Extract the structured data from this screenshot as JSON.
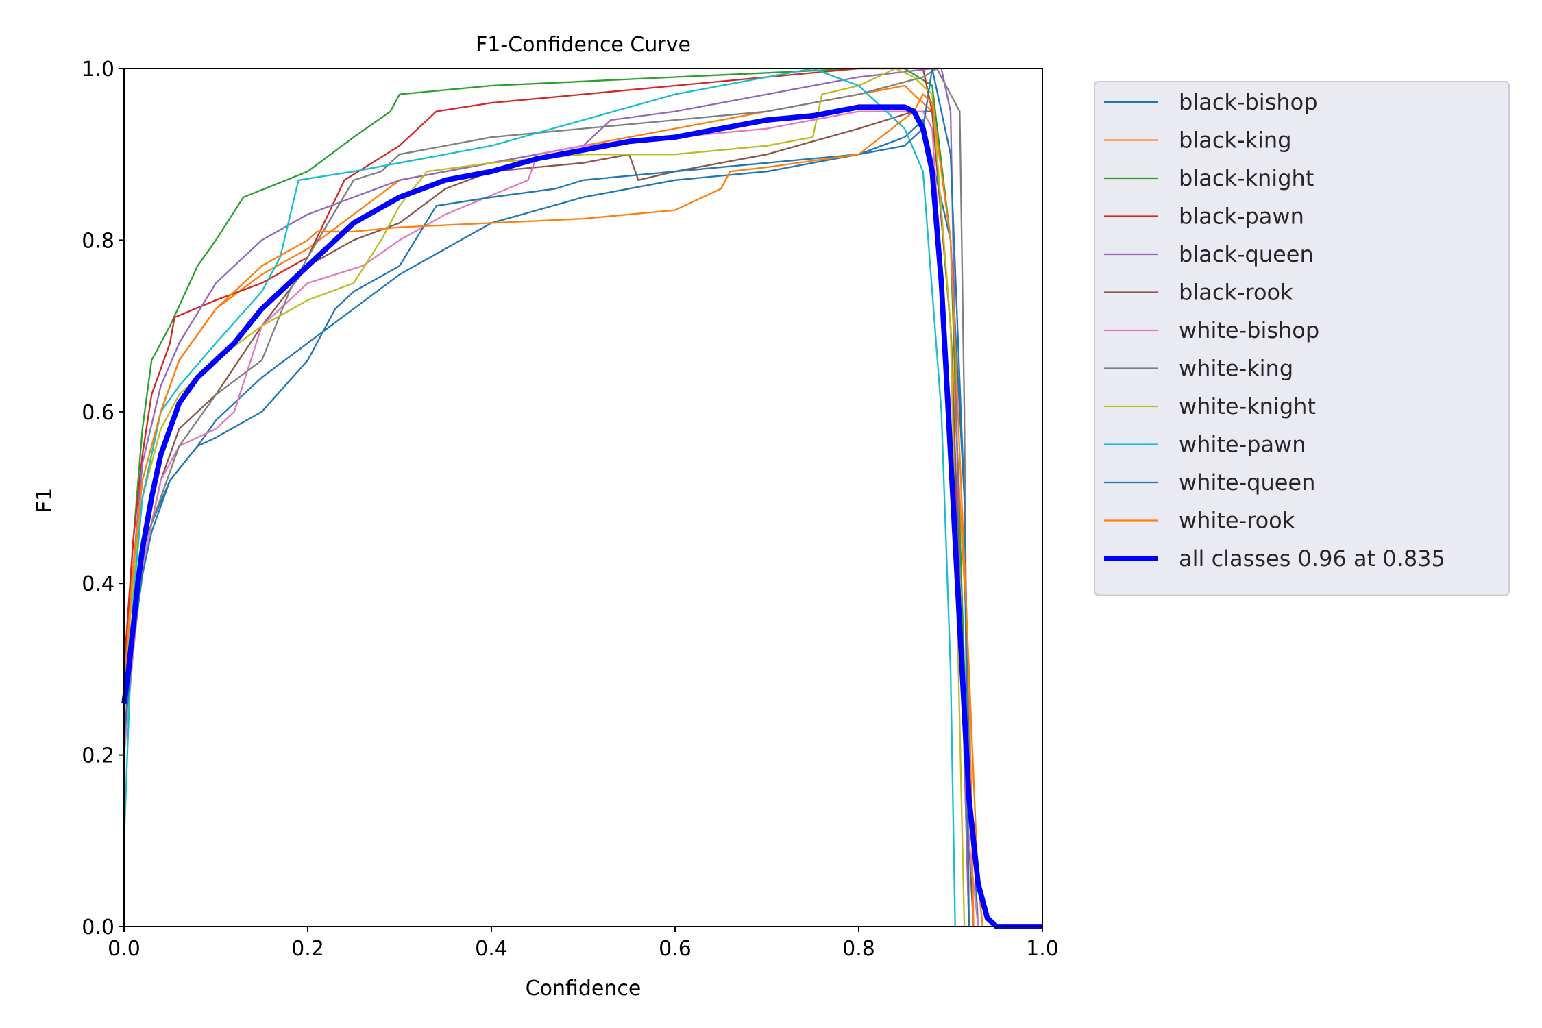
{
  "chart_data": {
    "type": "line",
    "title": "F1-Confidence Curve",
    "xlabel": "Confidence",
    "ylabel": "F1",
    "xlim": [
      0.0,
      1.0
    ],
    "ylim": [
      0.0,
      1.0
    ],
    "xticks": [
      "0.0",
      "0.2",
      "0.4",
      "0.6",
      "0.8",
      "1.0"
    ],
    "yticks": [
      "0.0",
      "0.2",
      "0.4",
      "0.6",
      "0.8",
      "1.0"
    ],
    "grid": false,
    "legend_position": "outside-right",
    "series": [
      {
        "name": "black-bishop",
        "color": "#1f77b4",
        "width": 1.5,
        "x": [
          0,
          0.01,
          0.02,
          0.03,
          0.05,
          0.08,
          0.1,
          0.15,
          0.2,
          0.3,
          0.4,
          0.5,
          0.6,
          0.7,
          0.8,
          0.85,
          0.87,
          0.9,
          0.915,
          0.92,
          0.93
        ],
        "y": [
          0.25,
          0.35,
          0.42,
          0.47,
          0.52,
          0.56,
          0.59,
          0.64,
          0.68,
          0.76,
          0.82,
          0.85,
          0.87,
          0.88,
          0.9,
          0.92,
          0.94,
          0.8,
          0.5,
          0.2,
          0
        ]
      },
      {
        "name": "black-king",
        "color": "#ff7f0e",
        "width": 1.5,
        "x": [
          0,
          0.01,
          0.02,
          0.04,
          0.06,
          0.1,
          0.15,
          0.2,
          0.3,
          0.4,
          0.5,
          0.6,
          0.7,
          0.8,
          0.85,
          0.86,
          0.88,
          0.9,
          0.92,
          0.93,
          0.935
        ],
        "y": [
          0.3,
          0.42,
          0.5,
          0.6,
          0.66,
          0.72,
          0.76,
          0.79,
          0.87,
          0.89,
          0.91,
          0.93,
          0.95,
          0.97,
          0.98,
          0.97,
          0.95,
          0.7,
          0.3,
          0.05,
          0
        ]
      },
      {
        "name": "black-knight",
        "color": "#2ca02c",
        "width": 1.5,
        "x": [
          0,
          0.01,
          0.02,
          0.03,
          0.05,
          0.08,
          0.1,
          0.13,
          0.2,
          0.25,
          0.29,
          0.3,
          0.4,
          0.5,
          0.6,
          0.7,
          0.8,
          0.85,
          0.88,
          0.9,
          0.915,
          0.92
        ],
        "y": [
          0.3,
          0.45,
          0.58,
          0.66,
          0.7,
          0.77,
          0.8,
          0.85,
          0.88,
          0.92,
          0.95,
          0.97,
          0.98,
          0.985,
          0.99,
          0.995,
          1.0,
          1.0,
          0.98,
          0.8,
          0.3,
          0
        ]
      },
      {
        "name": "black-pawn",
        "color": "#d62728",
        "width": 1.5,
        "x": [
          0,
          0.01,
          0.02,
          0.03,
          0.05,
          0.055,
          0.1,
          0.15,
          0.2,
          0.24,
          0.3,
          0.34,
          0.4,
          0.5,
          0.6,
          0.7,
          0.8,
          0.87,
          0.88,
          0.9,
          0.915,
          0.92
        ],
        "y": [
          0.3,
          0.45,
          0.55,
          0.62,
          0.68,
          0.71,
          0.73,
          0.75,
          0.78,
          0.87,
          0.91,
          0.95,
          0.96,
          0.97,
          0.98,
          0.99,
          1.0,
          1.0,
          0.95,
          0.7,
          0.2,
          0
        ]
      },
      {
        "name": "black-queen",
        "color": "#9467bd",
        "width": 1.5,
        "x": [
          0,
          0.01,
          0.02,
          0.04,
          0.06,
          0.1,
          0.15,
          0.2,
          0.3,
          0.4,
          0.5,
          0.53,
          0.6,
          0.7,
          0.8,
          0.88,
          0.89,
          0.9,
          0.91,
          0.92
        ],
        "y": [
          0.25,
          0.42,
          0.54,
          0.63,
          0.68,
          0.75,
          0.8,
          0.83,
          0.87,
          0.89,
          0.91,
          0.94,
          0.95,
          0.97,
          0.99,
          1.0,
          1.0,
          0.95,
          0.4,
          0
        ]
      },
      {
        "name": "black-rook",
        "color": "#8c564b",
        "width": 1.5,
        "x": [
          0,
          0.01,
          0.02,
          0.04,
          0.06,
          0.1,
          0.15,
          0.2,
          0.25,
          0.3,
          0.35,
          0.4,
          0.5,
          0.55,
          0.56,
          0.6,
          0.7,
          0.8,
          0.86,
          0.88,
          0.9,
          0.92,
          0.925
        ],
        "y": [
          0.2,
          0.32,
          0.42,
          0.52,
          0.58,
          0.62,
          0.7,
          0.77,
          0.8,
          0.82,
          0.86,
          0.88,
          0.89,
          0.9,
          0.87,
          0.88,
          0.9,
          0.93,
          0.95,
          0.95,
          0.7,
          0.1,
          0
        ]
      },
      {
        "name": "white-bishop",
        "color": "#e377c2",
        "width": 1.5,
        "x": [
          0,
          0.01,
          0.02,
          0.04,
          0.06,
          0.1,
          0.12,
          0.15,
          0.2,
          0.26,
          0.3,
          0.35,
          0.44,
          0.45,
          0.5,
          0.6,
          0.7,
          0.8,
          0.87,
          0.88,
          0.9,
          0.92,
          0.93
        ],
        "y": [
          0.2,
          0.32,
          0.42,
          0.52,
          0.56,
          0.58,
          0.6,
          0.7,
          0.75,
          0.77,
          0.8,
          0.83,
          0.87,
          0.9,
          0.91,
          0.92,
          0.93,
          0.95,
          0.95,
          0.93,
          0.6,
          0.1,
          0
        ]
      },
      {
        "name": "white-king",
        "color": "#7f7f7f",
        "width": 1.5,
        "x": [
          0,
          0.01,
          0.02,
          0.04,
          0.06,
          0.1,
          0.15,
          0.18,
          0.2,
          0.25,
          0.28,
          0.3,
          0.4,
          0.5,
          0.6,
          0.7,
          0.8,
          0.87,
          0.885,
          0.9,
          0.91,
          0.915,
          0.92
        ],
        "y": [
          0.22,
          0.35,
          0.44,
          0.5,
          0.56,
          0.62,
          0.66,
          0.74,
          0.78,
          0.87,
          0.88,
          0.9,
          0.92,
          0.93,
          0.94,
          0.95,
          0.97,
          0.99,
          1.0,
          0.97,
          0.95,
          0.6,
          0
        ]
      },
      {
        "name": "white-knight",
        "color": "#bcbd22",
        "width": 1.5,
        "x": [
          0,
          0.01,
          0.02,
          0.04,
          0.06,
          0.1,
          0.15,
          0.2,
          0.25,
          0.28,
          0.3,
          0.33,
          0.4,
          0.5,
          0.6,
          0.7,
          0.75,
          0.76,
          0.8,
          0.84,
          0.86,
          0.88,
          0.9,
          0.915
        ],
        "y": [
          0.28,
          0.4,
          0.5,
          0.58,
          0.62,
          0.66,
          0.7,
          0.73,
          0.75,
          0.8,
          0.84,
          0.88,
          0.89,
          0.9,
          0.9,
          0.91,
          0.92,
          0.97,
          0.98,
          1.0,
          0.99,
          0.97,
          0.7,
          0
        ]
      },
      {
        "name": "white-pawn",
        "color": "#17becf",
        "width": 1.5,
        "x": [
          0,
          0.01,
          0.02,
          0.04,
          0.06,
          0.1,
          0.15,
          0.17,
          0.19,
          0.25,
          0.3,
          0.4,
          0.5,
          0.6,
          0.7,
          0.75,
          0.8,
          0.85,
          0.87,
          0.89,
          0.9,
          0.905
        ],
        "y": [
          0.1,
          0.38,
          0.5,
          0.6,
          0.63,
          0.68,
          0.74,
          0.78,
          0.87,
          0.88,
          0.89,
          0.91,
          0.94,
          0.97,
          0.99,
          1.0,
          0.98,
          0.93,
          0.88,
          0.6,
          0.3,
          0
        ]
      },
      {
        "name": "white-queen",
        "color": "#1f77b4",
        "width": 1.5,
        "x": [
          0,
          0.01,
          0.02,
          0.03,
          0.05,
          0.08,
          0.1,
          0.15,
          0.2,
          0.23,
          0.25,
          0.3,
          0.34,
          0.4,
          0.47,
          0.5,
          0.6,
          0.7,
          0.8,
          0.85,
          0.87,
          0.88,
          0.9,
          0.915,
          0.92
        ],
        "y": [
          0.22,
          0.33,
          0.41,
          0.46,
          0.52,
          0.56,
          0.57,
          0.6,
          0.66,
          0.72,
          0.74,
          0.77,
          0.84,
          0.85,
          0.86,
          0.87,
          0.88,
          0.89,
          0.9,
          0.91,
          0.93,
          1.0,
          0.9,
          0.5,
          0
        ]
      },
      {
        "name": "white-rook",
        "color": "#ff7f0e",
        "width": 1.5,
        "x": [
          0,
          0.01,
          0.02,
          0.04,
          0.06,
          0.1,
          0.15,
          0.2,
          0.21,
          0.25,
          0.3,
          0.4,
          0.5,
          0.55,
          0.6,
          0.65,
          0.66,
          0.7,
          0.8,
          0.86,
          0.87,
          0.88,
          0.9,
          0.92,
          0.925
        ],
        "y": [
          0.28,
          0.42,
          0.52,
          0.6,
          0.66,
          0.72,
          0.77,
          0.8,
          0.81,
          0.81,
          0.815,
          0.82,
          0.825,
          0.83,
          0.835,
          0.86,
          0.88,
          0.885,
          0.9,
          0.95,
          0.97,
          0.96,
          0.8,
          0.3,
          0
        ]
      },
      {
        "name": "all classes 0.96 at 0.835",
        "color": "#0000ff",
        "width": 5,
        "x": [
          0,
          0.005,
          0.01,
          0.015,
          0.02,
          0.03,
          0.04,
          0.05,
          0.06,
          0.08,
          0.1,
          0.12,
          0.15,
          0.2,
          0.25,
          0.3,
          0.35,
          0.4,
          0.45,
          0.5,
          0.55,
          0.6,
          0.65,
          0.7,
          0.75,
          0.8,
          0.83,
          0.85,
          0.86,
          0.87,
          0.88,
          0.89,
          0.9,
          0.91,
          0.92,
          0.93,
          0.94,
          0.95,
          0.96,
          1.0
        ],
        "y": [
          0.26,
          0.3,
          0.35,
          0.4,
          0.44,
          0.5,
          0.55,
          0.58,
          0.61,
          0.64,
          0.66,
          0.68,
          0.72,
          0.77,
          0.82,
          0.85,
          0.87,
          0.88,
          0.895,
          0.905,
          0.915,
          0.92,
          0.93,
          0.94,
          0.945,
          0.955,
          0.955,
          0.955,
          0.95,
          0.93,
          0.88,
          0.75,
          0.55,
          0.35,
          0.15,
          0.05,
          0.01,
          0.0,
          0.0,
          0.0
        ]
      }
    ]
  }
}
